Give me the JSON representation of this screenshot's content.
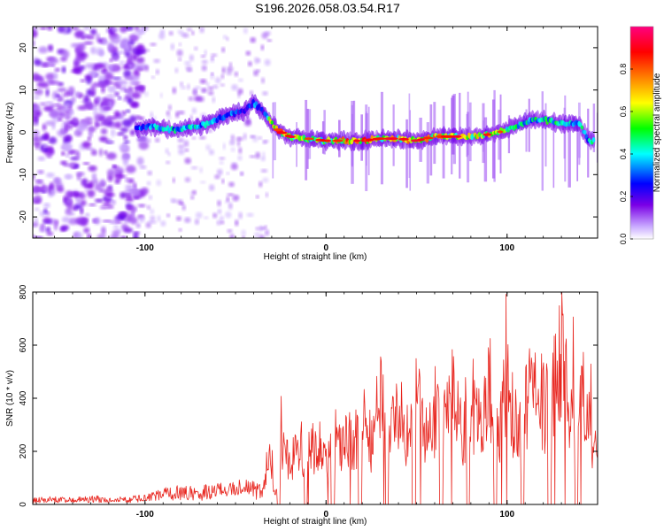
{
  "title": "S196.2026.058.03.54.R17",
  "chart_data": [
    {
      "type": "heatmap",
      "title": "S196.2026.058.03.54.R17",
      "xlabel": "Height of straight line (km)",
      "ylabel": "Frequency (Hz)",
      "xlim": [
        -162,
        150
      ],
      "ylim": [
        -25,
        25
      ],
      "xticks": [
        -100,
        0,
        100
      ],
      "xtick_labels": [
        "-100",
        "0",
        "100"
      ],
      "yticks": [
        -20,
        -10,
        0,
        10,
        20
      ],
      "ytick_labels": [
        "-20",
        "-10",
        "0",
        "10",
        "20"
      ],
      "colorbar": {
        "label": "Normalized spectral amplitude",
        "range": [
          0,
          1
        ],
        "ticks": [
          0.0,
          0.2,
          0.4,
          0.6,
          0.8
        ],
        "tick_labels": [
          "0.0",
          "0.2",
          "0.4",
          "0.6",
          "0.8"
        ],
        "colors": [
          "#ffffff",
          "#c8a8ff",
          "#7a00e6",
          "#0000ff",
          "#00ffff",
          "#00ff00",
          "#ffff00",
          "#ff8000",
          "#ff0000",
          "#ff0080"
        ]
      },
      "ridge": {
        "x": [
          -105,
          -95,
          -85,
          -75,
          -65,
          -55,
          -45,
          -40,
          -35,
          -30,
          -25,
          -20,
          -10,
          0,
          10,
          20,
          30,
          40,
          50,
          60,
          70,
          80,
          90,
          100,
          110,
          120,
          130,
          140,
          145
        ],
        "y": [
          1,
          1.5,
          0.5,
          1,
          2,
          4,
          5,
          7,
          5,
          2,
          0,
          -1,
          -1.5,
          -2,
          -2,
          -2,
          -1.5,
          -1.5,
          -2,
          -1,
          -1,
          -1,
          -0.5,
          0.5,
          2.5,
          3,
          2,
          2,
          -2
        ],
        "amplitude": [
          0.35,
          0.4,
          0.45,
          0.45,
          0.4,
          0.35,
          0.3,
          0.35,
          0.3,
          0.7,
          0.75,
          0.7,
          0.6,
          0.6,
          0.8,
          0.85,
          0.7,
          0.7,
          0.9,
          0.75,
          0.7,
          0.7,
          0.75,
          0.55,
          0.45,
          0.5,
          0.5,
          0.45,
          0.45
        ]
      }
    },
    {
      "type": "line",
      "xlabel": "Height of straight line (km)",
      "ylabel": "SNR (10 * v/v)",
      "xlim": [
        -162,
        150
      ],
      "ylim": [
        0,
        800
      ],
      "xticks": [
        -100,
        0,
        100
      ],
      "xtick_labels": [
        "-100",
        "0",
        "100"
      ],
      "yticks": [
        0,
        200,
        400,
        600,
        800
      ],
      "ytick_labels": [
        "0",
        "200",
        "400",
        "600",
        "800"
      ],
      "color": "#e8251e",
      "series": [
        {
          "name": "SNR",
          "x": [
            -162,
            -150,
            -140,
            -130,
            -120,
            -110,
            -100,
            -90,
            -80,
            -70,
            -60,
            -50,
            -40,
            -35,
            -32,
            -30,
            -28,
            -25,
            -20,
            -15,
            -10,
            -5,
            0,
            5,
            10,
            15,
            20,
            25,
            30,
            35,
            40,
            45,
            50,
            55,
            60,
            65,
            70,
            75,
            80,
            85,
            90,
            95,
            100,
            105,
            110,
            115,
            120,
            125,
            130,
            135,
            140,
            145,
            150
          ],
          "y": [
            20,
            25,
            20,
            30,
            20,
            25,
            30,
            50,
            60,
            55,
            70,
            80,
            70,
            60,
            200,
            230,
            30,
            300,
            220,
            280,
            250,
            320,
            260,
            350,
            300,
            360,
            420,
            320,
            520,
            400,
            480,
            350,
            560,
            380,
            500,
            420,
            610,
            360,
            560,
            420,
            630,
            350,
            590,
            420,
            480,
            600,
            520,
            560,
            790,
            440,
            600,
            420,
            200
          ]
        }
      ]
    }
  ]
}
